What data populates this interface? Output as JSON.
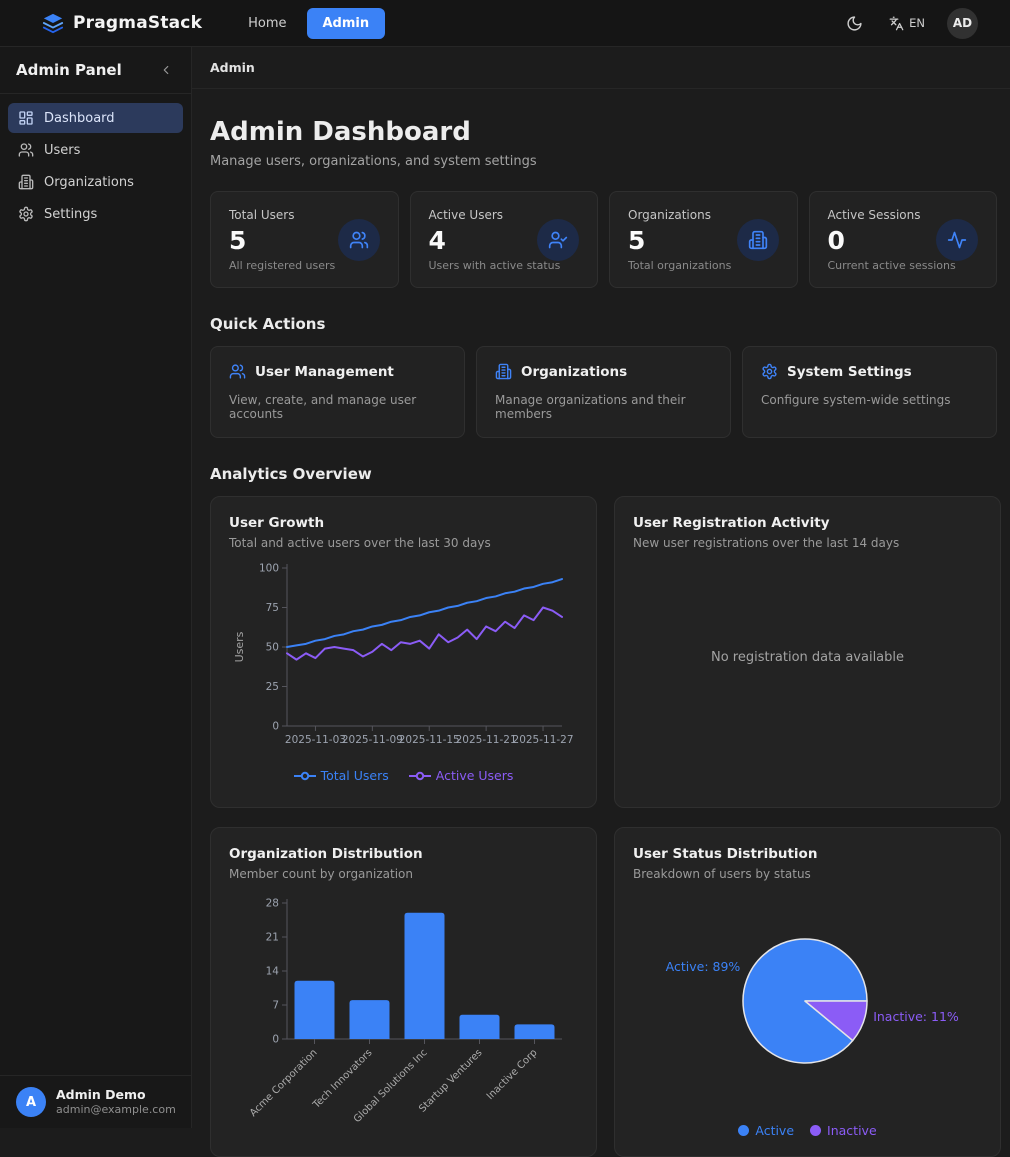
{
  "navbar": {
    "brand": "PragmaStack",
    "links": [
      {
        "label": "Home",
        "active": false
      },
      {
        "label": "Admin",
        "active": true
      }
    ],
    "language": "EN",
    "avatar_initials": "AD",
    "icons": [
      "layers-logo-icon",
      "moon-icon",
      "languages-icon"
    ]
  },
  "sidebar": {
    "title": "Admin Panel",
    "items": [
      {
        "label": "Dashboard",
        "icon": "dashboard-icon",
        "active": true
      },
      {
        "label": "Users",
        "icon": "users-icon",
        "active": false
      },
      {
        "label": "Organizations",
        "icon": "building-icon",
        "active": false
      },
      {
        "label": "Settings",
        "icon": "gear-icon",
        "active": false
      }
    ],
    "user": {
      "initial": "A",
      "name": "Admin Demo",
      "email": "admin@example.com"
    }
  },
  "breadcrumb": "Admin",
  "header": {
    "title": "Admin Dashboard",
    "subtitle": "Manage users, organizations, and system settings"
  },
  "stats": [
    {
      "label": "Total Users",
      "value": "5",
      "description": "All registered users",
      "icon": "users-icon"
    },
    {
      "label": "Active Users",
      "value": "4",
      "description": "Users with active status",
      "icon": "user-check-icon"
    },
    {
      "label": "Organizations",
      "value": "5",
      "description": "Total organizations",
      "icon": "building-icon"
    },
    {
      "label": "Active Sessions",
      "value": "0",
      "description": "Current active sessions",
      "icon": "activity-icon"
    }
  ],
  "quick_actions": {
    "heading": "Quick Actions",
    "items": [
      {
        "title": "User Management",
        "description": "View, create, and manage user accounts",
        "icon": "users-icon"
      },
      {
        "title": "Organizations",
        "description": "Manage organizations and their members",
        "icon": "building-icon"
      },
      {
        "title": "System Settings",
        "description": "Configure system-wide settings",
        "icon": "gear-icon"
      }
    ]
  },
  "analytics": {
    "heading": "Analytics Overview",
    "cards": [
      {
        "title": "User Growth",
        "subtitle": "Total and active users over the last 30 days"
      },
      {
        "title": "User Registration Activity",
        "subtitle": "New user registrations over the last 14 days",
        "empty_message": "No registration data available"
      },
      {
        "title": "Organization Distribution",
        "subtitle": "Member count by organization"
      },
      {
        "title": "User Status Distribution",
        "subtitle": "Breakdown of users by status"
      }
    ]
  },
  "chart_data": [
    {
      "type": "line",
      "title": "User Growth",
      "xlabel": "",
      "ylabel": "Users",
      "ylim": [
        0,
        100
      ],
      "yticks": [
        0,
        25,
        50,
        75,
        100
      ],
      "n_points": 30,
      "x_tick_labels": [
        "2025-11-03",
        "2025-11-09",
        "2025-11-15",
        "2025-11-21",
        "2025-11-27"
      ],
      "x_tick_indices": [
        3,
        9,
        15,
        21,
        27
      ],
      "grid": false,
      "legend_position": "bottom",
      "series": [
        {
          "name": "Total Users",
          "color": "#3b82f6",
          "values": [
            50,
            51,
            52,
            54,
            55,
            57,
            58,
            60,
            61,
            63,
            64,
            66,
            67,
            69,
            70,
            72,
            73,
            75,
            76,
            78,
            79,
            81,
            82,
            84,
            85,
            87,
            88,
            90,
            91,
            93
          ]
        },
        {
          "name": "Active Users",
          "color": "#8b5cf6",
          "values": [
            46,
            42,
            46,
            43,
            49,
            50,
            49,
            48,
            44,
            47,
            52,
            48,
            53,
            52,
            54,
            49,
            58,
            53,
            56,
            61,
            55,
            63,
            60,
            66,
            62,
            70,
            67,
            75,
            73,
            69
          ]
        }
      ]
    },
    {
      "type": "bar",
      "title": "Organization Distribution",
      "xlabel": "",
      "ylabel": "",
      "ylim": [
        0,
        28
      ],
      "yticks": [
        0,
        7,
        14,
        21,
        28
      ],
      "grid": false,
      "color": "#3b82f6",
      "categories": [
        "Acme Corporation",
        "Tech Innovators",
        "Global Solutions Inc",
        "Startup Ventures",
        "Inactive Corp"
      ],
      "values": [
        12,
        8,
        26,
        5,
        3
      ]
    },
    {
      "type": "pie",
      "title": "User Status Distribution",
      "legend_position": "bottom",
      "slices": [
        {
          "label": "Active",
          "pct": 89,
          "color": "#3b82f6",
          "callout": "Active: 89%"
        },
        {
          "label": "Inactive",
          "pct": 11,
          "color": "#8b5cf6",
          "callout": "Inactive: 11%"
        }
      ]
    }
  ]
}
